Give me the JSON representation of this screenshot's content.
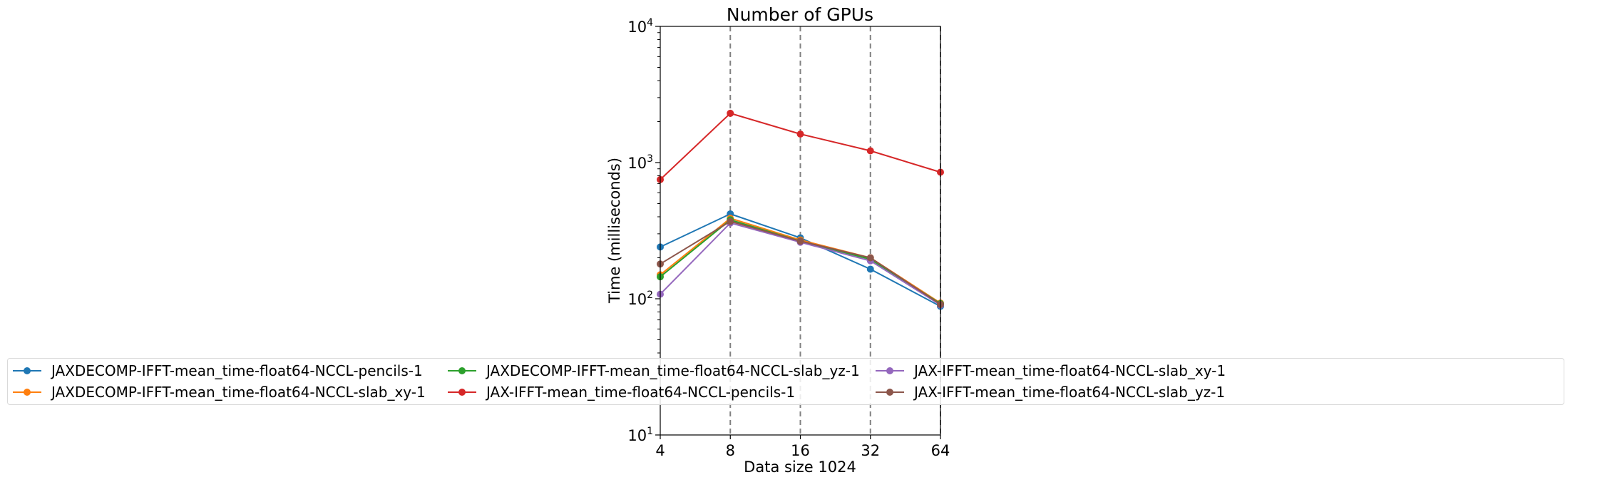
{
  "chart_data": {
    "type": "line",
    "title": "Number of GPUs",
    "xlabel": "Data size 1024",
    "ylabel": "Time (milliseconds)",
    "x_scale": "log2",
    "y_scale": "log",
    "x": [
      4,
      8,
      16,
      32,
      64
    ],
    "xtick_labels": [
      "4",
      "8",
      "16",
      "32",
      "64"
    ],
    "ytick_labels": [
      {
        "base": "10",
        "exp": "1",
        "value": 10
      },
      {
        "base": "10",
        "exp": "2",
        "value": 100
      },
      {
        "base": "10",
        "exp": "3",
        "value": 1000
      },
      {
        "base": "10",
        "exp": "4",
        "value": 10000
      }
    ],
    "ylim": [
      10,
      10000
    ],
    "grid": "vertical dashed lines at x ticks",
    "legend_placement": "bottom, 4 columns",
    "series": [
      {
        "name": "JAXDECOMP-IFFT-mean_time-float64-NCCL-pencils-1",
        "color": "#1f77b4",
        "values": [
          240,
          420,
          280,
          165,
          88
        ]
      },
      {
        "name": "JAXDECOMP-IFFT-mean_time-float64-NCCL-slab_xy-1",
        "color": "#ff7f0e",
        "values": [
          150,
          390,
          270,
          200,
          93
        ]
      },
      {
        "name": "JAXDECOMP-IFFT-mean_time-float64-NCCL-slab_yz-1",
        "color": "#2ca02c",
        "values": [
          145,
          380,
          265,
          195,
          92
        ]
      },
      {
        "name": "JAX-IFFT-mean_time-float64-NCCL-pencils-1",
        "color": "#d62728",
        "values": [
          750,
          2300,
          1620,
          1220,
          850
        ]
      },
      {
        "name": "JAX-IFFT-mean_time-float64-NCCL-slab_xy-1",
        "color": "#9467bd",
        "values": [
          108,
          360,
          260,
          190,
          90
        ]
      },
      {
        "name": "JAX-IFFT-mean_time-float64-NCCL-slab_yz-1",
        "color": "#8c564b",
        "values": [
          180,
          370,
          265,
          200,
          91
        ]
      }
    ]
  }
}
